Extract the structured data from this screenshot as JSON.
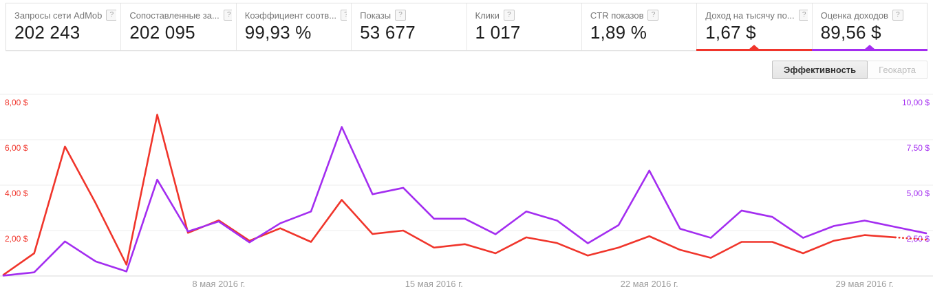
{
  "metrics": {
    "help_icon": "?",
    "cards": [
      {
        "key": "admob-network-requests",
        "label": "Запросы сети AdMob",
        "value": "202 243"
      },
      {
        "key": "matched-requests",
        "label": "Сопоставленные за...",
        "value": "202 095"
      },
      {
        "key": "match-rate",
        "label": "Коэффициент соотв...",
        "value": "99,93 %"
      },
      {
        "key": "impressions",
        "label": "Показы",
        "value": "53 677"
      },
      {
        "key": "clicks",
        "label": "Клики",
        "value": "1 017"
      },
      {
        "key": "impression-ctr",
        "label": "CTR показов",
        "value": "1,89 %"
      },
      {
        "key": "ecpm",
        "label": "Доход на тысячу по...",
        "value": "1,67 $",
        "indicator_color": "#f0352b"
      },
      {
        "key": "estimated-earnings",
        "label": "Оценка доходов",
        "value": "89,56 $",
        "indicator_color": "#a32df0"
      }
    ]
  },
  "tabs": [
    {
      "key": "performance",
      "label": "Эффективность",
      "active": true
    },
    {
      "key": "geomap",
      "label": "Геокарта",
      "active": false
    }
  ],
  "chart_data": {
    "type": "line",
    "title": "",
    "xlabel": "",
    "x_unit": "date (May 2016, daily)",
    "x": [
      1,
      2,
      3,
      4,
      5,
      6,
      7,
      8,
      9,
      10,
      11,
      12,
      13,
      14,
      15,
      16,
      17,
      18,
      19,
      20,
      21,
      22,
      23,
      24,
      25,
      26,
      27,
      28,
      29,
      30,
      31
    ],
    "x_tick_labels": [
      {
        "x": 8,
        "label": "8 мая 2016 г."
      },
      {
        "x": 15,
        "label": "15 мая 2016 г."
      },
      {
        "x": 22,
        "label": "22 мая 2016 г."
      },
      {
        "x": 29,
        "label": "29 мая 2016 г."
      }
    ],
    "left_axis": {
      "title": "Доход на тысячу показов",
      "color": "#f0352b",
      "min": 0,
      "max": 8,
      "tick_values": [
        8,
        6,
        4,
        2
      ],
      "tick_labels": [
        "8,00 $",
        "6,00 $",
        "4,00 $",
        "2,00 $"
      ]
    },
    "right_axis": {
      "title": "Оценка доходов",
      "color": "#a32df0",
      "min": 0,
      "max": 10,
      "tick_values": [
        10,
        7.5,
        5,
        2.5
      ],
      "tick_labels": [
        "10,00 $",
        "7,50 $",
        "5,00 $",
        "2,50 $"
      ]
    },
    "grid": "horizontal",
    "legend": "none",
    "series": [
      {
        "name": "Доход на тысячу показов ($)",
        "axis": "left",
        "color": "#f0352b",
        "dashed_last_segment": true,
        "values": [
          0.05,
          1.0,
          5.7,
          3.2,
          0.5,
          7.1,
          1.9,
          2.45,
          1.55,
          2.1,
          1.5,
          3.35,
          1.85,
          2.0,
          1.25,
          1.4,
          1.0,
          1.7,
          1.45,
          0.9,
          1.25,
          1.75,
          1.15,
          0.8,
          1.5,
          1.5,
          1.0,
          1.55,
          1.8,
          1.7,
          1.6
        ]
      },
      {
        "name": "Оценка доходов ($)",
        "axis": "right",
        "color": "#a32df0",
        "dashed_last_segment": false,
        "values": [
          0.02,
          0.2,
          1.9,
          0.8,
          0.25,
          5.3,
          2.45,
          3.0,
          1.85,
          2.9,
          3.55,
          8.2,
          4.5,
          4.85,
          3.15,
          3.15,
          2.3,
          3.55,
          3.05,
          1.8,
          2.8,
          5.8,
          2.6,
          2.1,
          3.6,
          3.25,
          2.1,
          2.75,
          3.05,
          2.7,
          2.35
        ]
      }
    ]
  }
}
